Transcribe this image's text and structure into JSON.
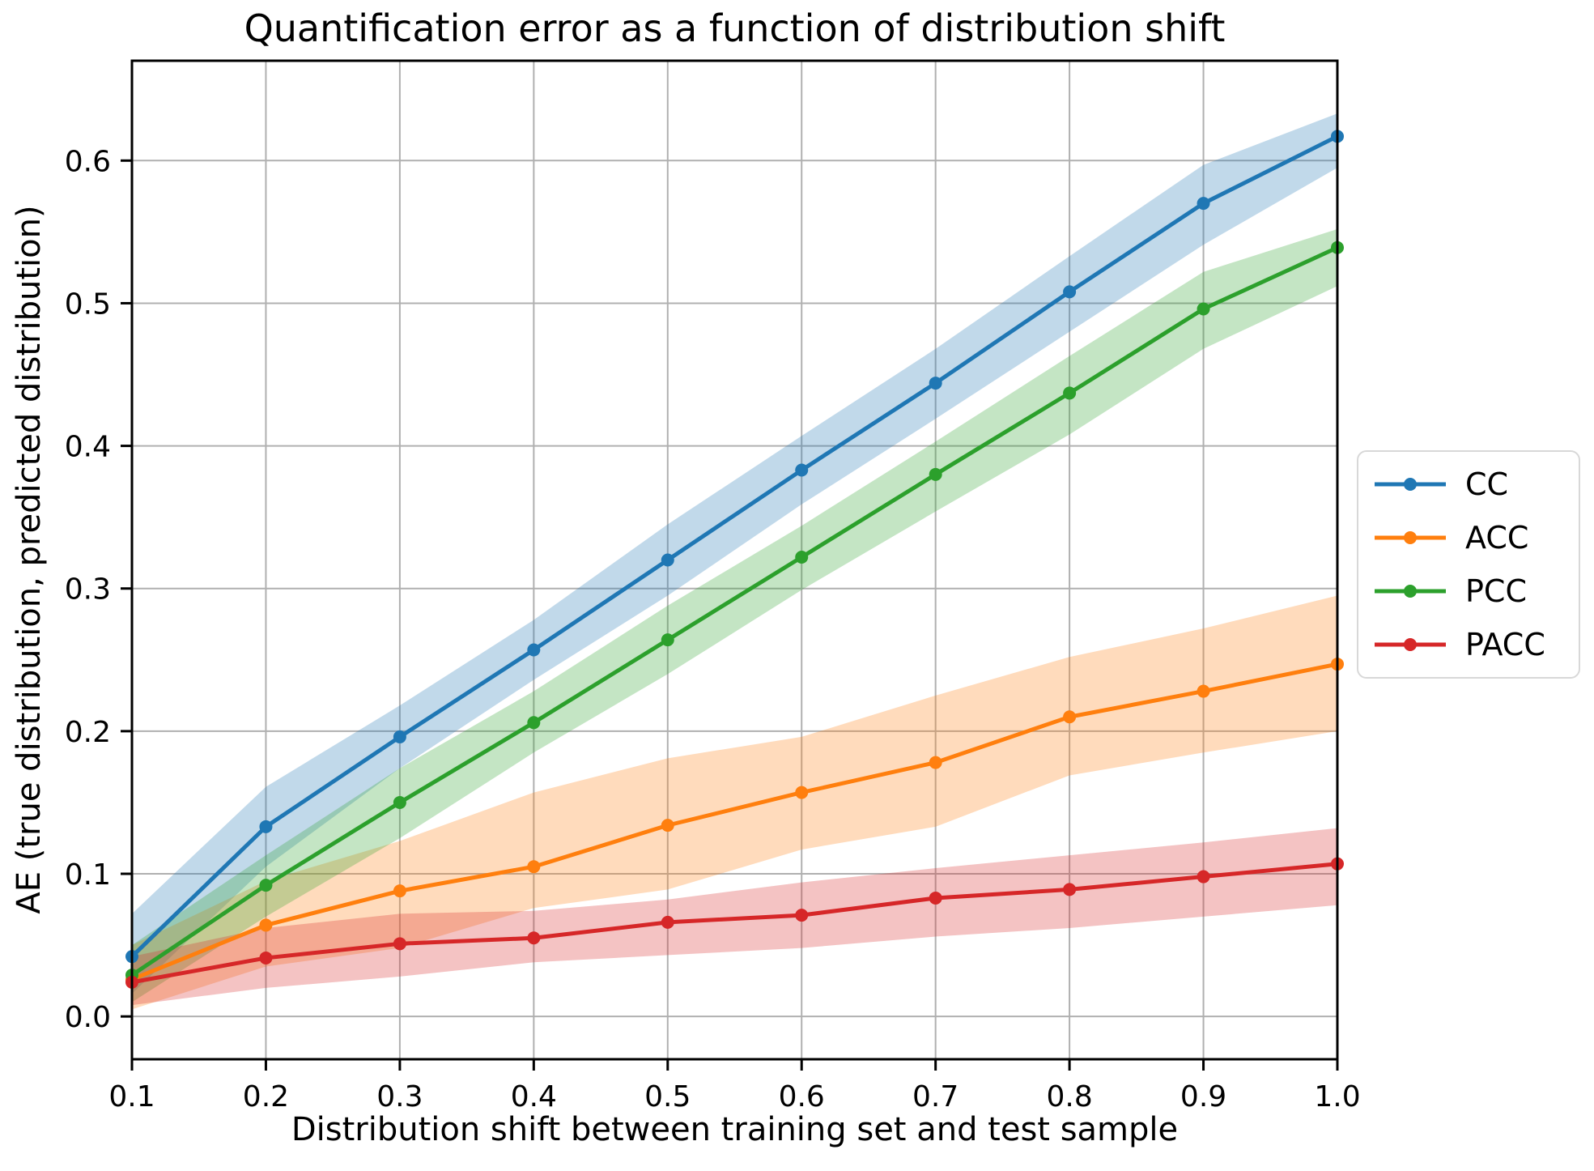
{
  "chart_data": {
    "type": "line",
    "title": "Quantification error as a function of distribution shift",
    "xlabel": "Distribution shift between training set and test sample",
    "ylabel": "AE (true distribution, predicted distribution)",
    "x": [
      0.1,
      0.2,
      0.3,
      0.4,
      0.5,
      0.6,
      0.7,
      0.8,
      0.9,
      1.0
    ],
    "xticks": [
      "0.1",
      "0.2",
      "0.3",
      "0.4",
      "0.5",
      "0.6",
      "0.7",
      "0.8",
      "0.9",
      "1.0"
    ],
    "yticks": [
      "0.0",
      "0.1",
      "0.2",
      "0.3",
      "0.4",
      "0.5",
      "0.6"
    ],
    "xlim": [
      0.1,
      1.0
    ],
    "ylim": [
      -0.03,
      0.67
    ],
    "grid": true,
    "legend_position": "outside-right",
    "series": [
      {
        "name": "CC",
        "color": "#1f77b4",
        "values": [
          0.042,
          0.133,
          0.196,
          0.257,
          0.32,
          0.383,
          0.444,
          0.508,
          0.57,
          0.617
        ],
        "band_lower": [
          0.016,
          0.105,
          0.174,
          0.236,
          0.295,
          0.359,
          0.419,
          0.48,
          0.541,
          0.595
        ],
        "band_upper": [
          0.072,
          0.161,
          0.218,
          0.278,
          0.345,
          0.407,
          0.468,
          0.533,
          0.597,
          0.633
        ]
      },
      {
        "name": "ACC",
        "color": "#ff7f0e",
        "values": [
          0.026,
          0.064,
          0.088,
          0.105,
          0.134,
          0.157,
          0.178,
          0.21,
          0.228,
          0.247
        ],
        "band_lower": [
          0.005,
          0.035,
          0.048,
          0.076,
          0.089,
          0.117,
          0.133,
          0.169,
          0.185,
          0.2
        ],
        "band_upper": [
          0.05,
          0.095,
          0.123,
          0.157,
          0.181,
          0.196,
          0.225,
          0.252,
          0.272,
          0.295
        ]
      },
      {
        "name": "PCC",
        "color": "#2ca02c",
        "values": [
          0.029,
          0.092,
          0.15,
          0.206,
          0.264,
          0.322,
          0.38,
          0.437,
          0.496,
          0.539
        ],
        "band_lower": [
          0.01,
          0.07,
          0.125,
          0.185,
          0.24,
          0.299,
          0.354,
          0.408,
          0.468,
          0.512
        ],
        "band_upper": [
          0.05,
          0.113,
          0.174,
          0.228,
          0.288,
          0.344,
          0.403,
          0.463,
          0.522,
          0.552
        ]
      },
      {
        "name": "PACC",
        "color": "#d62728",
        "values": [
          0.024,
          0.041,
          0.051,
          0.055,
          0.066,
          0.071,
          0.083,
          0.089,
          0.098,
          0.107
        ],
        "band_lower": [
          0.008,
          0.02,
          0.028,
          0.038,
          0.043,
          0.048,
          0.056,
          0.062,
          0.07,
          0.078
        ],
        "band_upper": [
          0.042,
          0.062,
          0.072,
          0.074,
          0.082,
          0.094,
          0.104,
          0.113,
          0.122,
          0.132
        ]
      }
    ]
  }
}
